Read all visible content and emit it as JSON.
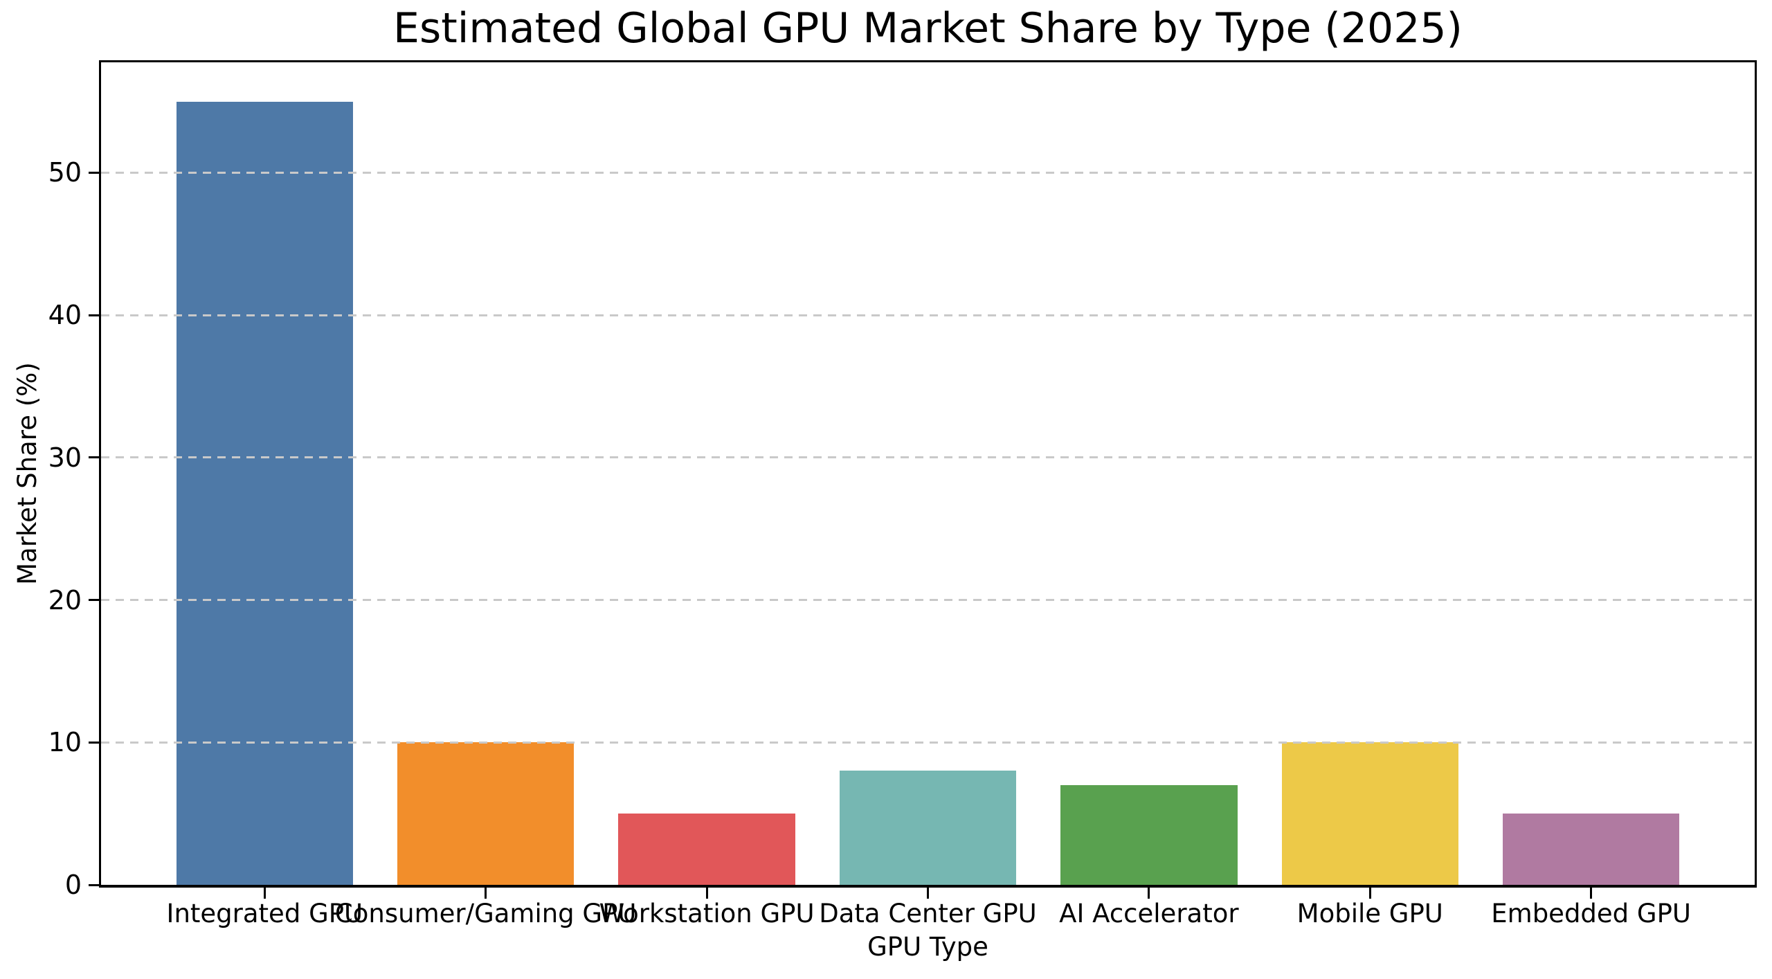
{
  "figure": {
    "background": "#ffffff",
    "text_color": "#000000"
  },
  "chart_data": {
    "type": "bar",
    "title": "Estimated Global GPU Market Share by Type (2025)",
    "xlabel": "GPU Type",
    "ylabel": "Market Share (%)",
    "categories": [
      "Integrated GPU",
      "Consumer/Gaming GPU",
      "Workstation GPU",
      "Data Center GPU",
      "AI Accelerator",
      "Mobile GPU",
      "Embedded GPU"
    ],
    "values": [
      55,
      10,
      5,
      8,
      7,
      10,
      5
    ],
    "bar_colors": [
      "#4E79A7",
      "#F28E2B",
      "#E15759",
      "#76B7B2",
      "#59A14F",
      "#EDC948",
      "#B07AA1"
    ],
    "yticks": [
      0,
      10,
      20,
      30,
      40,
      50
    ],
    "ylim": [
      0,
      57.75
    ],
    "xlim": [
      -0.74,
      6.74
    ],
    "bar_width_fraction": 0.8,
    "grid": "horizontal dashed, drawn over bars",
    "grid_color": "#c9c9c9",
    "axis_color": "#000000",
    "legend": "none"
  }
}
